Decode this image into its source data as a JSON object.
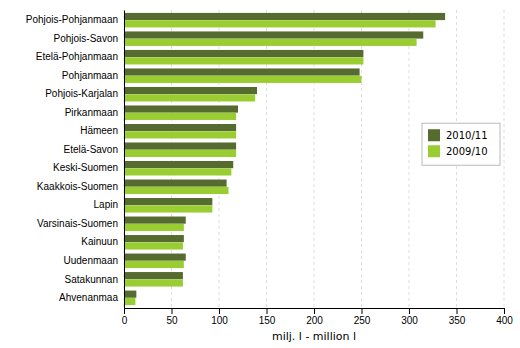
{
  "chart_data": {
    "type": "bar",
    "orientation": "horizontal",
    "categories": [
      "Pohjois-Pohjanmaan",
      "Pohjois-Savon",
      "Etelä-Pohjanmaan",
      "Pohjanmaan",
      "Pohjois-Karjalan",
      "Pirkanmaan",
      "Hämeen",
      "Etelä-Savon",
      "Keski-Suomen",
      "Kaakkois-Suomen",
      "Lapin",
      "Varsinais-Suomen",
      "Kainuun",
      "Uudenmaan",
      "Satakunnan",
      "Ahvenanmaa"
    ],
    "series": [
      {
        "name": "2010/11",
        "color": "#556B2F",
        "values": [
          338,
          315,
          252,
          248,
          140,
          120,
          118,
          118,
          115,
          108,
          93,
          65,
          63,
          65,
          62,
          13
        ]
      },
      {
        "name": "2009/10",
        "color": "#9ACD32",
        "values": [
          328,
          308,
          252,
          250,
          138,
          118,
          118,
          118,
          113,
          110,
          93,
          63,
          62,
          63,
          62,
          12
        ]
      }
    ],
    "xlabel": "milj. l - million l",
    "xlim": [
      0,
      400
    ],
    "xticks": [
      0,
      50,
      100,
      150,
      200,
      250,
      300,
      350,
      400
    ],
    "grid": true,
    "legend": "right"
  }
}
